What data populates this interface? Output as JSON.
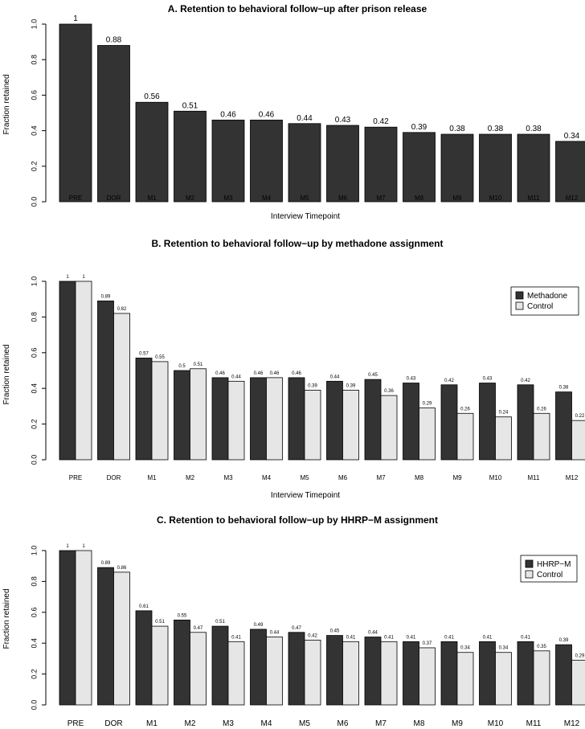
{
  "colors": {
    "dark": "#333333",
    "light": "#e6e6e6",
    "stroke": "#000000"
  },
  "chart_data": [
    {
      "type": "bar",
      "title": "A. Retention to behavioral follow−up after prison release",
      "xlabel": "Interview Timepoint",
      "ylabel": "Fraction retained",
      "ylim": [
        0,
        1
      ],
      "yticks": [
        "0.0",
        "0.2",
        "0.4",
        "0.6",
        "0.8",
        "1.0"
      ],
      "categories": [
        "PRE",
        "DOR",
        "M1",
        "M2",
        "M3",
        "M4",
        "M5",
        "M6",
        "M7",
        "M8",
        "M9",
        "M10",
        "M11",
        "M12"
      ],
      "series": [
        {
          "values": [
            1,
            0.88,
            0.56,
            0.51,
            0.46,
            0.46,
            0.44,
            0.43,
            0.42,
            0.39,
            0.38,
            0.38,
            0.38,
            0.34
          ],
          "labels": [
            "1",
            "0.88",
            "0.56",
            "0.51",
            "0.46",
            "0.46",
            "0.44",
            "0.43",
            "0.42",
            "0.39",
            "0.38",
            "0.38",
            "0.38",
            "0.34"
          ]
        }
      ]
    },
    {
      "type": "bar",
      "title": "B. Retention to behavioral follow−up by methadone assignment",
      "xlabel": "Interview Timepoint",
      "ylabel": "Fraction retained",
      "ylim": [
        0,
        1
      ],
      "yticks": [
        "0.0",
        "0.2",
        "0.4",
        "0.6",
        "0.8",
        "1.0"
      ],
      "legend": "top-right",
      "categories": [
        "PRE",
        "DOR",
        "M1",
        "M2",
        "M3",
        "M4",
        "M5",
        "M6",
        "M7",
        "M8",
        "M9",
        "M10",
        "M11",
        "M12"
      ],
      "series": [
        {
          "name": "Methadone",
          "values": [
            1,
            0.89,
            0.57,
            0.5,
            0.46,
            0.46,
            0.46,
            0.44,
            0.45,
            0.43,
            0.42,
            0.43,
            0.42,
            0.38
          ],
          "labels": [
            "1",
            "0.89",
            "0.57",
            "0.5",
            "0.46",
            "0.46",
            "0.46",
            "0.44",
            "0.45",
            "0.43",
            "0.42",
            "0.43",
            "0.42",
            "0.38"
          ]
        },
        {
          "name": "Control",
          "values": [
            1,
            0.82,
            0.55,
            0.51,
            0.44,
            0.46,
            0.39,
            0.39,
            0.36,
            0.29,
            0.26,
            0.24,
            0.26,
            0.22
          ],
          "labels": [
            "1",
            "0.82",
            "0.55",
            "0.51",
            "0.44",
            "0.46",
            "0.39",
            "0.39",
            "0.36",
            "0.29",
            "0.26",
            "0.24",
            "0.26",
            "0.22"
          ]
        }
      ]
    },
    {
      "type": "bar",
      "title": "C. Retention to behavioral follow−up by HHRP−M assignment",
      "xlabel": "",
      "ylabel": "Fraction retained",
      "ylim": [
        0,
        1
      ],
      "yticks": [
        "0.0",
        "0.2",
        "0.4",
        "0.6",
        "0.8",
        "1.0"
      ],
      "legend": "top-right",
      "categories": [
        "PRE",
        "DOR",
        "M1",
        "M2",
        "M3",
        "M4",
        "M5",
        "M6",
        "M7",
        "M8",
        "M9",
        "M10",
        "M11",
        "M12"
      ],
      "series": [
        {
          "name": "HHRP−M",
          "values": [
            1,
            0.89,
            0.61,
            0.55,
            0.51,
            0.49,
            0.47,
            0.45,
            0.44,
            0.41,
            0.41,
            0.41,
            0.41,
            0.39
          ],
          "labels": [
            "1",
            "0.89",
            "0.61",
            "0.55",
            "0.51",
            "0.49",
            "0.47",
            "0.45",
            "0.44",
            "0.41",
            "0.41",
            "0.41",
            "0.41",
            "0.39"
          ]
        },
        {
          "name": "Control",
          "values": [
            1,
            0.86,
            0.51,
            0.47,
            0.41,
            0.44,
            0.42,
            0.41,
            0.41,
            0.37,
            0.34,
            0.34,
            0.35,
            0.29
          ],
          "labels": [
            "1",
            "0.86",
            "0.51",
            "0.47",
            "0.41",
            "0.44",
            "0.42",
            "0.41",
            "0.41",
            "0.37",
            "0.34",
            "0.34",
            "0.35",
            "0.29"
          ]
        }
      ]
    }
  ]
}
